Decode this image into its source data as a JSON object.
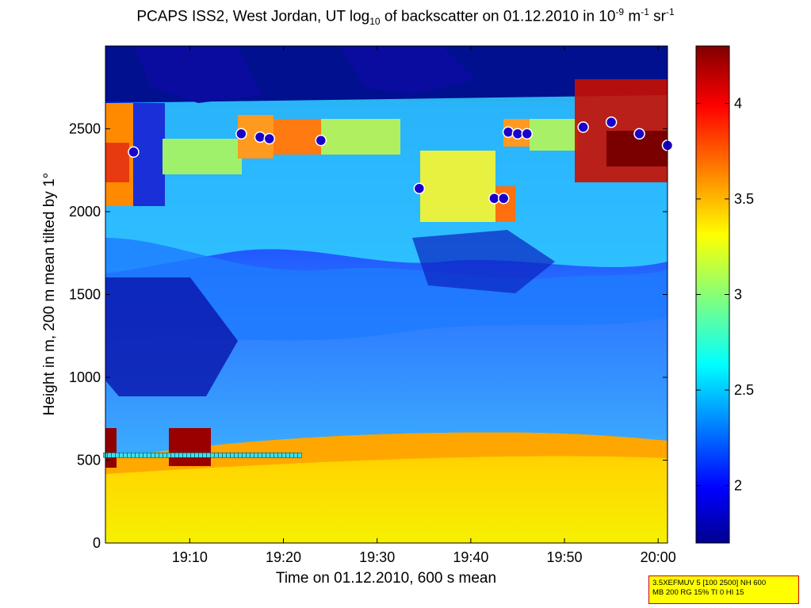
{
  "title": {
    "prefix": "PCAPS ISS2, West Jordan, UT log",
    "sub": "10",
    "middle": " of backscatter on 01.12.2010 in 10",
    "sup1": "-9",
    "unit_m": " m",
    "sup2": "-1",
    "unit_sr": " sr",
    "sup3": "-1"
  },
  "info_box": {
    "line1": "3.5XEFMUV 5 [100 2500] NH 600",
    "line2": "MB 200 RG 15% TI 0 HI 15"
  },
  "chart_data": {
    "type": "heatmap",
    "xlabel": "Time on 01.12.2010, 600 s mean",
    "ylabel": "Height in m, 200 m mean tilted by 1°",
    "x_ticks": [
      "19:10",
      "19:20",
      "19:30",
      "19:40",
      "19:50",
      "20:00"
    ],
    "x_range": [
      "19:01",
      "20:01"
    ],
    "y_ticks": [
      0,
      500,
      1000,
      1500,
      2000,
      2500
    ],
    "ylim": [
      0,
      3000
    ],
    "colorbar": {
      "ticks": [
        2,
        2.5,
        3,
        3.5,
        4
      ],
      "range": [
        1.7,
        4.3
      ],
      "colormap": "jet"
    },
    "overlay_markers": {
      "cloud_base_circles": [
        {
          "time": "19:04",
          "height": 2360
        },
        {
          "time": "19:15.5",
          "height": 2470
        },
        {
          "time": "19:17.5",
          "height": 2450
        },
        {
          "time": "19:18.5",
          "height": 2440
        },
        {
          "time": "19:24",
          "height": 2430
        },
        {
          "time": "19:34.5",
          "height": 2140
        },
        {
          "time": "19:42.5",
          "height": 2080
        },
        {
          "time": "19:43.5",
          "height": 2080
        },
        {
          "time": "19:44",
          "height": 2480
        },
        {
          "time": "19:45",
          "height": 2470
        },
        {
          "time": "19:46",
          "height": 2470
        },
        {
          "time": "19:52",
          "height": 2510
        },
        {
          "time": "19:55",
          "height": 2540
        },
        {
          "time": "19:58",
          "height": 2470
        },
        {
          "time": "20:01",
          "height": 2400
        }
      ],
      "mixing_layer_squares": {
        "from": "19:01",
        "to": "19:22",
        "height": 530
      }
    }
  }
}
